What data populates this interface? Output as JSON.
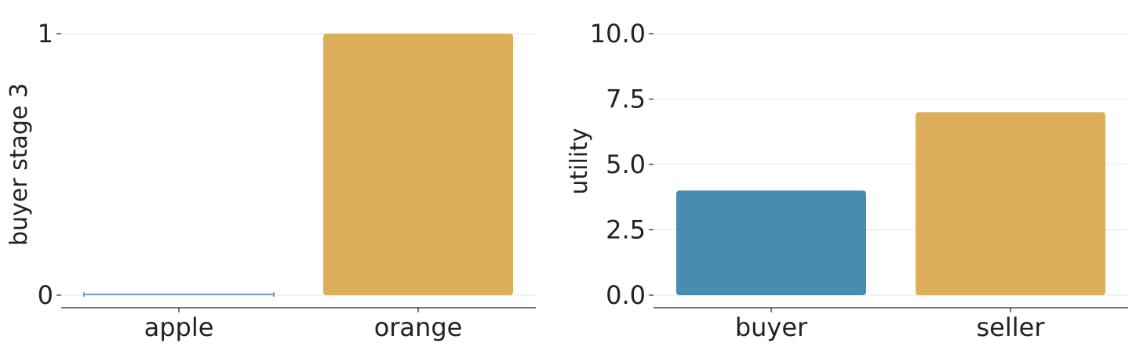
{
  "colors": {
    "blue": "#488cb2",
    "orange": "#ddaf5b"
  },
  "chart_data": [
    {
      "type": "bar",
      "categories": [
        "apple",
        "orange"
      ],
      "values": [
        0,
        1
      ],
      "bar_colors": [
        "#488cb2",
        "#ddaf5b"
      ],
      "ylabel": "buyer stage 3",
      "xlabel": "",
      "ylim": [
        0,
        1
      ],
      "yticks": [
        0,
        1
      ],
      "ytick_labels": [
        "0",
        "1"
      ],
      "grid": "horizontal"
    },
    {
      "type": "bar",
      "categories": [
        "buyer",
        "seller"
      ],
      "values": [
        4,
        7
      ],
      "bar_colors": [
        "#488cb2",
        "#ddaf5b"
      ],
      "ylabel": "utility",
      "xlabel": "",
      "ylim": [
        0,
        10
      ],
      "yticks": [
        0,
        2.5,
        5,
        7.5,
        10
      ],
      "ytick_labels": [
        "0.0",
        "2.5",
        "5.0",
        "7.5",
        "10.0"
      ],
      "grid": "horizontal"
    }
  ]
}
